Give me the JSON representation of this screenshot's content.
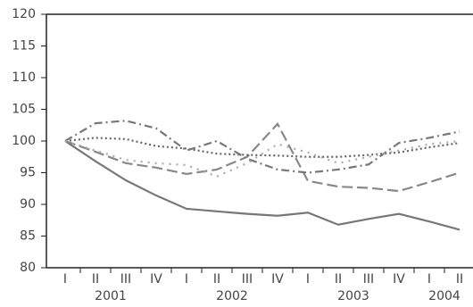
{
  "chart_data": {
    "type": "line",
    "categories": [
      "I",
      "II",
      "III",
      "IV",
      "I",
      "II",
      "III",
      "IV",
      "I",
      "II",
      "III",
      "IV",
      "I",
      "II"
    ],
    "year_labels": [
      "2001",
      "2002",
      "2003",
      "2004"
    ],
    "ylim": [
      80,
      120
    ],
    "yticks": [
      80,
      85,
      90,
      95,
      100,
      105,
      110,
      115,
      120
    ],
    "series": [
      {
        "color": "#777777",
        "dash": "solid",
        "values": [
          100,
          96.8,
          93.8,
          91.4,
          89.3,
          88.9,
          88.5,
          88.2,
          88.7,
          86.8,
          87.7,
          88.5,
          87.3,
          86.0
        ]
      },
      {
        "color": "#888888",
        "dash": "long-dash",
        "values": [
          100,
          98.3,
          96.5,
          95.8,
          94.8,
          95.5,
          97.5,
          102.7,
          93.7,
          92.8,
          92.6,
          92.1,
          93.5,
          95.0
        ]
      },
      {
        "color": "#666666",
        "dash": "dot",
        "values": [
          100,
          100.5,
          100.3,
          99.2,
          98.8,
          98.0,
          97.8,
          97.7,
          97.5,
          97.5,
          97.8,
          98.2,
          99.0,
          99.7
        ]
      },
      {
        "color": "#777777",
        "dash": "dash-dot",
        "values": [
          100,
          102.8,
          103.2,
          102.0,
          98.5,
          100.0,
          97.2,
          95.5,
          95.0,
          95.5,
          96.3,
          99.7,
          100.5,
          101.5
        ]
      },
      {
        "color": "#aaaaaa",
        "dash": "sparse-dot",
        "values": [
          100,
          98.5,
          97.0,
          96.5,
          96.2,
          94.4,
          96.5,
          99.5,
          98.2,
          96.5,
          97.5,
          98.5,
          99.5,
          100.0
        ]
      }
    ]
  }
}
